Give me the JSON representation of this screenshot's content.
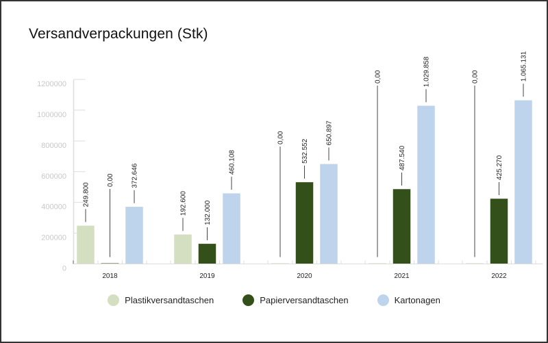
{
  "chart_data": {
    "type": "bar",
    "title": "Versandverpackungen (Stk)",
    "xlabel": "",
    "ylabel": "",
    "categories": [
      "2018",
      "2019",
      "2020",
      "2021",
      "2022"
    ],
    "ylim": [
      0,
      1200000
    ],
    "yticks": [
      "0",
      "200000",
      "400000",
      "600000",
      "800000",
      "1000000",
      "1200000"
    ],
    "ytick_values": [
      0,
      200000,
      400000,
      600000,
      800000,
      1000000,
      1200000
    ],
    "grid": false,
    "legend_position": "bottom",
    "series": [
      {
        "name": "Plastikversandtaschen",
        "color": "#d3dfc0",
        "values": [
          249800,
          192600,
          0,
          0,
          0
        ],
        "labels": [
          "249.800",
          "192.600",
          "0,00",
          "0,00",
          "0,00"
        ]
      },
      {
        "name": "Papierversandtaschen",
        "color": "#34501a",
        "values": [
          0,
          132000,
          532552,
          487540,
          425270
        ],
        "labels": [
          "0,00",
          "132.000",
          "532.552",
          "487.540",
          "425.270"
        ]
      },
      {
        "name": "Kartonagen",
        "color": "#bed3ec",
        "values": [
          372646,
          460108,
          650897,
          1029858,
          1065131
        ],
        "labels": [
          "372.646",
          "460.108",
          "650.897",
          "1.029.858",
          "1.065.131"
        ]
      }
    ]
  }
}
